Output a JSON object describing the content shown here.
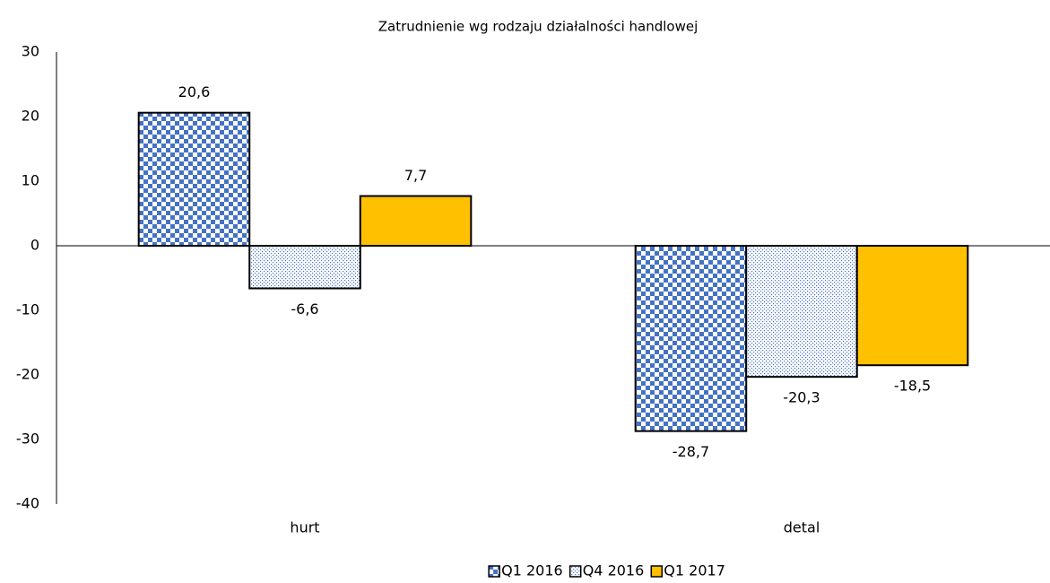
{
  "chart_data": {
    "type": "bar",
    "title": "Zatrudnienie wg rodzaju działalności handlowej",
    "categories": [
      "hurt",
      "detal"
    ],
    "series": [
      {
        "name": "Q1 2016",
        "color": "#4472c4",
        "pattern": "checker",
        "values": [
          20.6,
          -28.7
        ],
        "value_labels": [
          "20,6",
          "-28,7"
        ]
      },
      {
        "name": "Q4 2016",
        "color": "#4472c4",
        "pattern": "dots",
        "values": [
          -6.6,
          -20.3
        ],
        "value_labels": [
          "-6,6",
          "-20,3"
        ]
      },
      {
        "name": "Q1 2017",
        "color": "#ffc000",
        "pattern": "solid",
        "values": [
          7.7,
          -18.5
        ],
        "value_labels": [
          "7,7",
          "-18,5"
        ]
      }
    ],
    "ylim": [
      -40,
      30
    ],
    "yticks": [
      -40,
      -30,
      -20,
      -10,
      0,
      10,
      20,
      30
    ],
    "grid": false,
    "legend": "bottom"
  }
}
